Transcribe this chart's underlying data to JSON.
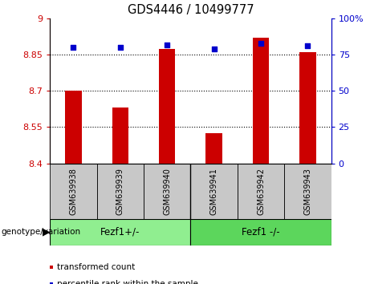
{
  "title": "GDS4446 / 10499777",
  "samples": [
    "GSM639938",
    "GSM639939",
    "GSM639940",
    "GSM639941",
    "GSM639942",
    "GSM639943"
  ],
  "transformed_counts": [
    8.7,
    8.63,
    8.875,
    8.525,
    8.92,
    8.86
  ],
  "percentile_ranks": [
    80,
    80,
    82,
    79,
    83,
    81
  ],
  "ylim_left": [
    8.4,
    9.0
  ],
  "ylim_right": [
    0,
    100
  ],
  "yticks_left": [
    8.4,
    8.55,
    8.7,
    8.85,
    9.0
  ],
  "yticks_right": [
    0,
    25,
    50,
    75,
    100
  ],
  "ytick_labels_left": [
    "8.4",
    "8.55",
    "8.7",
    "8.85",
    "9"
  ],
  "ytick_labels_right": [
    "0",
    "25",
    "50",
    "75",
    "100%"
  ],
  "bar_color": "#cc0000",
  "dot_color": "#0000cc",
  "group1_label": "Fezf1+/-",
  "group2_label": "Fezf1 -/-",
  "group_color": "#90ee90",
  "group_label_text": "genotype/variation",
  "legend_label1": "transformed count",
  "legend_label2": "percentile rank within the sample",
  "bar_width": 0.35,
  "sample_box_color": "#c8c8c8",
  "fig_bg": "#ffffff"
}
